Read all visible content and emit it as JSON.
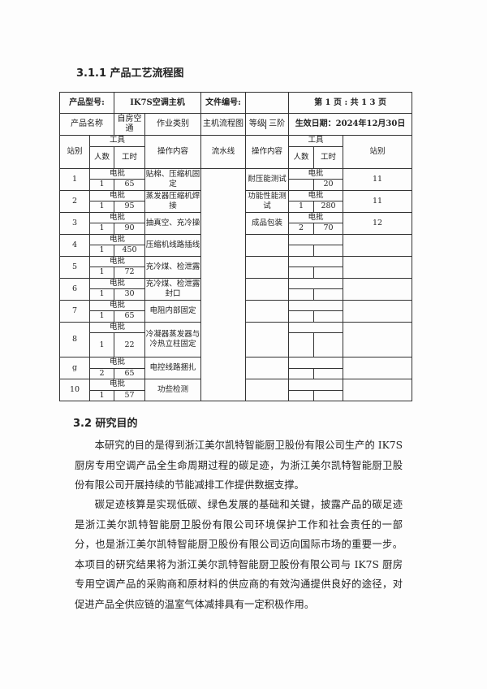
{
  "section_311_title": "3.1.1 产品工艺流程图",
  "header": {
    "model_label": "产品型号:",
    "model_value": "IK7S空调主机",
    "doc_no_label": "文件编号:",
    "doc_no_value": "",
    "page_info": "第 1 页 :   共 1 3 页",
    "name_label": "产品名称",
    "name_value": "自房空通",
    "work_type_label": "作业类别",
    "work_type_value": "主机流程图",
    "grade_label": "等级",
    "grade_value": "三阶",
    "effective_date": "生效日期：2024年12月30日"
  },
  "columns": {
    "station": "站别",
    "tool": "工具",
    "people": "人数",
    "hours": "工时",
    "operation": "操作内容",
    "flowline": "流水线"
  },
  "left_stations": [
    {
      "station": "1",
      "tool": "电批",
      "people": "1",
      "hours": "65",
      "operation": "贴棉、压缩机固定"
    },
    {
      "station": "2",
      "tool": "电批",
      "people": "1",
      "hours": "95",
      "operation": "蒸发器压缩机焊接"
    },
    {
      "station": "3",
      "tool": "电批",
      "people": "1",
      "hours": "90",
      "operation": "抽真空、充冷操"
    },
    {
      "station": "4",
      "tool": "电批",
      "people": "1",
      "hours": "450",
      "operation": "压缩机线路插线"
    },
    {
      "station": "5",
      "tool": "电批",
      "people": "1",
      "hours": "72",
      "operation": "充冷煤、检泄露"
    },
    {
      "station": "6",
      "tool": "电批",
      "people": "1",
      "hours": "30",
      "operation": "充冷煤、检泄露封口"
    },
    {
      "station": "7",
      "tool": "电批",
      "people": "1",
      "hours": "65",
      "operation": "电阻内部固定"
    },
    {
      "station": "8",
      "tool": "电批",
      "people": "1",
      "hours": "22",
      "operation": "冷凝器蒸发器与冷热立柱固定"
    },
    {
      "station": "g",
      "tool": "电批",
      "people": "2",
      "hours": "65",
      "operation": "电控线路捆扎"
    },
    {
      "station": "10",
      "tool": "电批",
      "people": "1",
      "hours": "57",
      "operation": "功些检测"
    }
  ],
  "right_stations": [
    {
      "operation": "耐压能测试",
      "tool": "电批",
      "people": "",
      "hours": "20",
      "station": "11"
    },
    {
      "operation": "功能性能测试",
      "tool": "电批",
      "people": "1",
      "hours": "280",
      "station": "11"
    },
    {
      "operation": "成品包装",
      "tool": "电批",
      "people": "2",
      "hours": "70",
      "station": "12"
    },
    {
      "operation": "",
      "tool": "",
      "people": "",
      "hours": "",
      "station": ""
    },
    {
      "operation": "",
      "tool": "",
      "people": "",
      "hours": "",
      "station": ""
    },
    {
      "operation": "",
      "tool": "",
      "people": "",
      "hours": "",
      "station": ""
    },
    {
      "operation": "",
      "tool": "",
      "people": "",
      "hours": "",
      "station": ""
    },
    {
      "operation": "",
      "tool": "",
      "people": "",
      "hours": "",
      "station": ""
    },
    {
      "operation": "",
      "tool": "",
      "people": "",
      "hours": "",
      "station": ""
    },
    {
      "operation": "",
      "tool": "",
      "people": "",
      "hours": "",
      "station": ""
    }
  ],
  "section_32_title": "3.2 研究目的",
  "paragraphs": [
    "本研究的目的是得到浙江美尔凯特智能厨卫股份有限公司生产的 IK7S 厨房专用空调产品全生命周期过程的碳足迹，为浙江美尔凯特智能厨卫股份有限公司开展持续的节能减排工作提供数据支撑。",
    "碳足迹核算是实现低碳、绿色发展的基础和关键，披露产品的碳足迹是浙江美尔凯特智能厨卫股份有限公司环境保护工作和社会责任的一部分，也是浙江美尔凯特智能厨卫股份有限公司迈向国际市场的重要一步。本项目的研究结果将为浙江美尔凯特智能厨卫股份有限公司与 IK7S 厨房专用空调产品的采购商和原材料的供应商的有效沟通提供良好的途径，对促进产品全供应链的温室气体减排具有一定积极作用。"
  ]
}
